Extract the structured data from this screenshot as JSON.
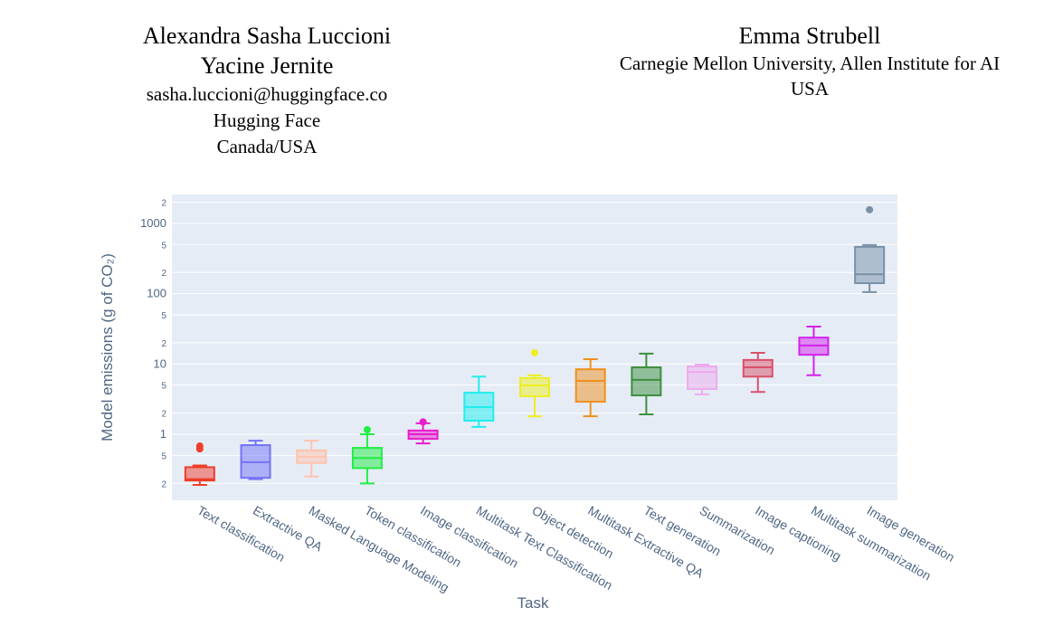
{
  "header": {
    "left": [
      "Alexandra Sasha Luccioni",
      "Yacine Jernite",
      "sasha.luccioni@huggingface.co",
      "Hugging Face",
      "Canada/USA"
    ],
    "right": [
      "Emma Strubell",
      "Carnegie Mellon University, Allen Institute for AI",
      "USA"
    ]
  },
  "chart_data": {
    "type": "box",
    "x_label": "Task",
    "y_label": "Model emissions (g of CO₂)",
    "log_y": true,
    "grid": true,
    "categories": [
      "Text classification",
      "Extractive QA",
      "Masked Language Modeling",
      "Token classification",
      "Image classification",
      "Multitask Text Classification",
      "Object detection",
      "Multitask Extractive QA",
      "Text generation",
      "Summarization",
      "Image captioning",
      "Multitask summarization",
      "Image generation"
    ],
    "colors": [
      "#ef3e2b",
      "#7373f5",
      "#ffc2ae",
      "#22ee44",
      "#e81ccc",
      "#22eeee",
      "#eeee22",
      "#f0901e",
      "#3e8f3e",
      "#eeaaee",
      "#d9506a",
      "#d322ee",
      "#7890a8"
    ],
    "min": [
      0.19,
      0.23,
      0.25,
      0.2,
      0.74,
      1.27,
      1.8,
      1.8,
      1.92,
      3.7,
      4.0,
      6.9,
      105
    ],
    "q1": [
      0.22,
      0.24,
      0.39,
      0.33,
      0.86,
      1.56,
      3.47,
      2.9,
      3.57,
      4.4,
      6.6,
      13.5,
      141
    ],
    "median": [
      0.23,
      0.4,
      0.48,
      0.46,
      1.0,
      2.43,
      4.95,
      5.75,
      5.93,
      7.7,
      8.95,
      18.3,
      189
    ],
    "q3": [
      0.34,
      0.7,
      0.59,
      0.64,
      1.13,
      3.9,
      6.3,
      8.4,
      8.95,
      9.2,
      11.4,
      23.7,
      463
    ],
    "max": [
      0.36,
      0.81,
      0.81,
      1.0,
      1.43,
      6.6,
      6.9,
      11.7,
      14,
      9.8,
      14.4,
      34,
      490
    ],
    "outliers": [
      [
        0.62,
        0.68
      ],
      [],
      [],
      [
        1.16
      ],
      [
        1.5
      ],
      [],
      [
        14.4
      ],
      [],
      [],
      [],
      [],
      [],
      [
        1560
      ]
    ],
    "ylim": [
      0.115,
      2570
    ],
    "yticks": [
      {
        "value": 0.2,
        "label": "2"
      },
      {
        "value": 0.5,
        "label": "5"
      },
      1,
      {
        "value": 2,
        "label": "2"
      },
      {
        "value": 5,
        "label": "5"
      },
      10,
      {
        "value": 20,
        "label": "2"
      },
      {
        "value": 50,
        "label": "5"
      },
      100,
      {
        "value": 200,
        "label": "2"
      },
      {
        "value": 500,
        "label": "5"
      },
      1000,
      {
        "value": 2000,
        "label": "2"
      }
    ]
  }
}
